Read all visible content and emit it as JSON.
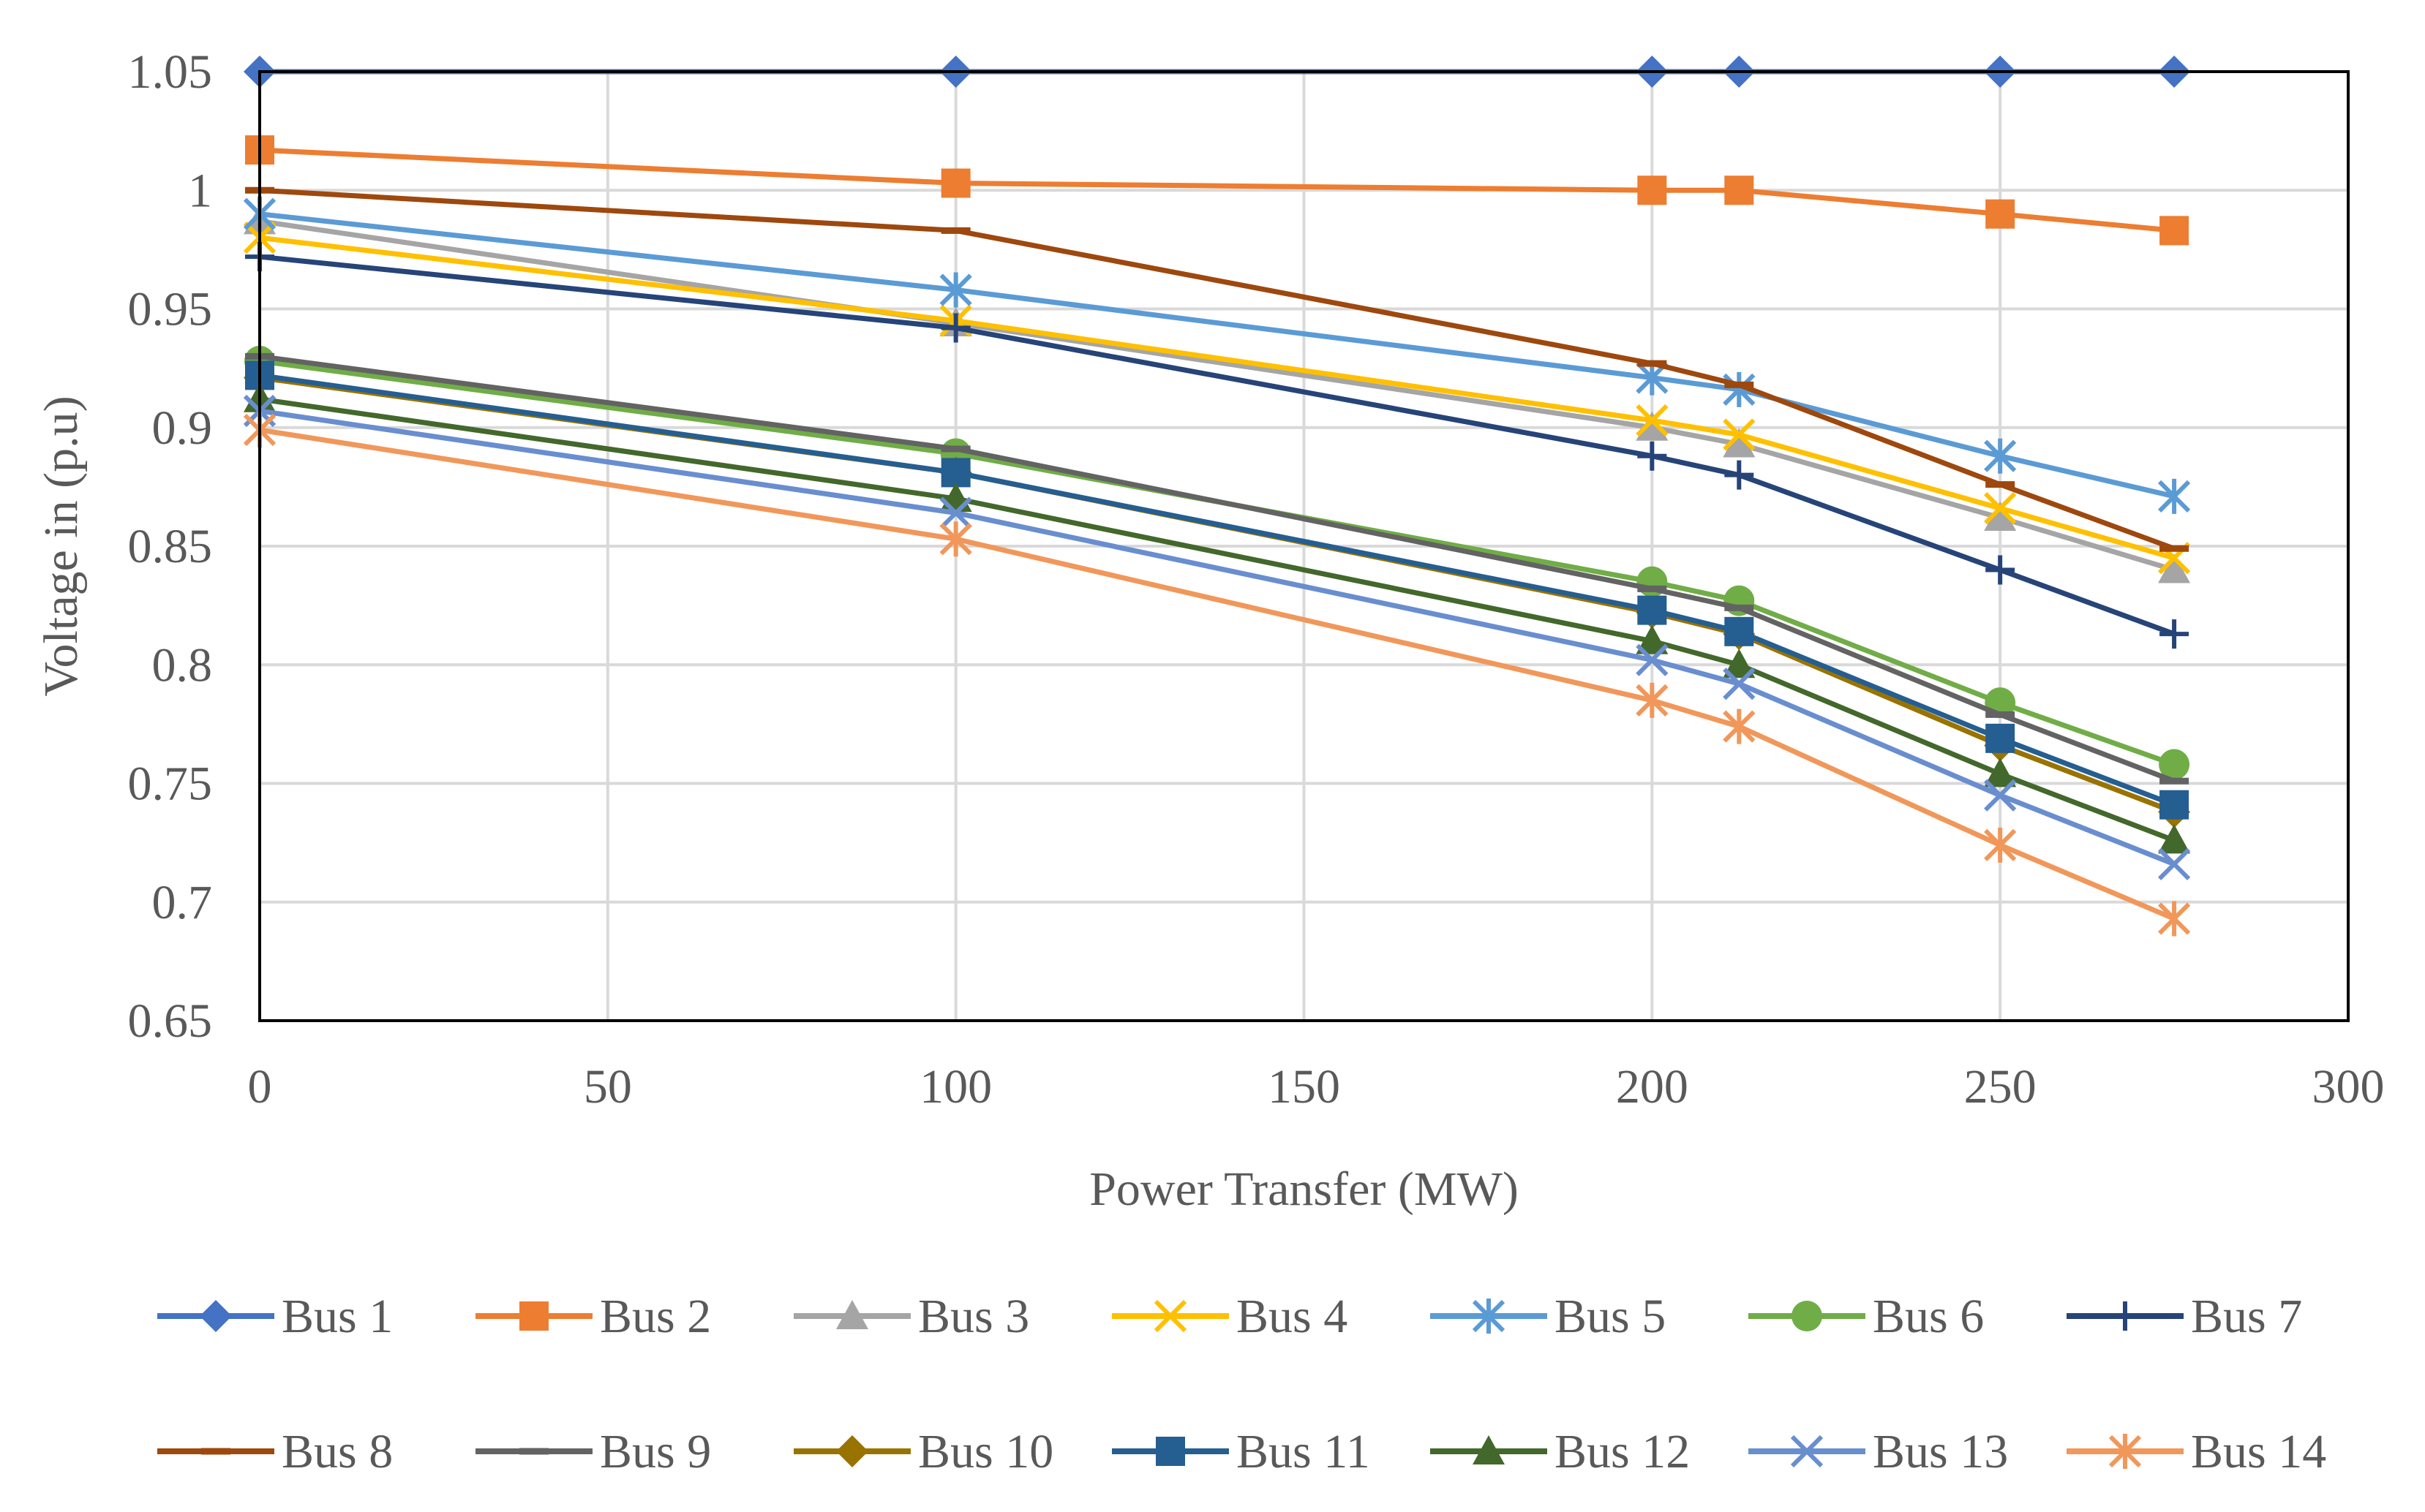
{
  "chart_data": {
    "type": "line",
    "title": "",
    "xlabel": "Power Transfer (MW)",
    "ylabel": "Voltage in (p.u)",
    "xlim": [
      0,
      300
    ],
    "ylim": [
      0.65,
      1.05
    ],
    "xticks": [
      "0",
      "50",
      "100",
      "150",
      "200",
      "250",
      "300"
    ],
    "yticks": [
      "0.65",
      "0.7",
      "0.75",
      "0.8",
      "0.85",
      "0.9",
      "0.95",
      "1",
      "1.05"
    ],
    "grid": true,
    "legend_position": "bottom",
    "x": [
      0,
      100,
      200,
      212.5,
      250,
      275
    ],
    "series": [
      {
        "name": "Bus 1",
        "color": "#4472C4",
        "marker": "diamond",
        "values": [
          1.05,
          1.05,
          1.05,
          1.05,
          1.05,
          1.05
        ]
      },
      {
        "name": "Bus 2",
        "color": "#ED7D31",
        "marker": "square",
        "values": [
          1.017,
          1.003,
          1.0,
          1.0,
          0.99,
          0.983
        ]
      },
      {
        "name": "Bus 3",
        "color": "#A5A5A5",
        "marker": "triangle",
        "values": [
          0.987,
          0.944,
          0.9,
          0.893,
          0.862,
          0.84
        ]
      },
      {
        "name": "Bus 4",
        "color": "#FFC000",
        "marker": "x",
        "values": [
          0.98,
          0.945,
          0.903,
          0.897,
          0.866,
          0.845
        ]
      },
      {
        "name": "Bus 5",
        "color": "#5B9BD5",
        "marker": "star",
        "values": [
          0.99,
          0.958,
          0.921,
          0.916,
          0.888,
          0.871
        ]
      },
      {
        "name": "Bus 6",
        "color": "#70AD47",
        "marker": "circle",
        "values": [
          0.928,
          0.889,
          0.835,
          0.827,
          0.784,
          0.758
        ]
      },
      {
        "name": "Bus 7",
        "color": "#264478",
        "marker": "plus",
        "values": [
          0.972,
          0.942,
          0.888,
          0.88,
          0.84,
          0.813
        ]
      },
      {
        "name": "Bus 8",
        "color": "#9E480E",
        "marker": "dash",
        "values": [
          1.0,
          0.983,
          0.927,
          0.918,
          0.876,
          0.849
        ]
      },
      {
        "name": "Bus 9",
        "color": "#636363",
        "marker": "dash",
        "values": [
          0.93,
          0.891,
          0.832,
          0.824,
          0.779,
          0.751
        ]
      },
      {
        "name": "Bus 10",
        "color": "#997300",
        "marker": "diamond",
        "values": [
          0.921,
          0.881,
          0.822,
          0.813,
          0.766,
          0.738
        ]
      },
      {
        "name": "Bus 11",
        "color": "#255E91",
        "marker": "square",
        "values": [
          0.922,
          0.881,
          0.823,
          0.814,
          0.769,
          0.741
        ]
      },
      {
        "name": "Bus 12",
        "color": "#43682B",
        "marker": "triangle",
        "values": [
          0.912,
          0.87,
          0.81,
          0.8,
          0.754,
          0.726
        ]
      },
      {
        "name": "Bus 13",
        "color": "#698ED0",
        "marker": "x",
        "values": [
          0.907,
          0.864,
          0.802,
          0.792,
          0.745,
          0.716
        ]
      },
      {
        "name": "Bus 14",
        "color": "#F1975A",
        "marker": "star",
        "values": [
          0.899,
          0.853,
          0.785,
          0.774,
          0.724,
          0.693
        ]
      }
    ]
  }
}
